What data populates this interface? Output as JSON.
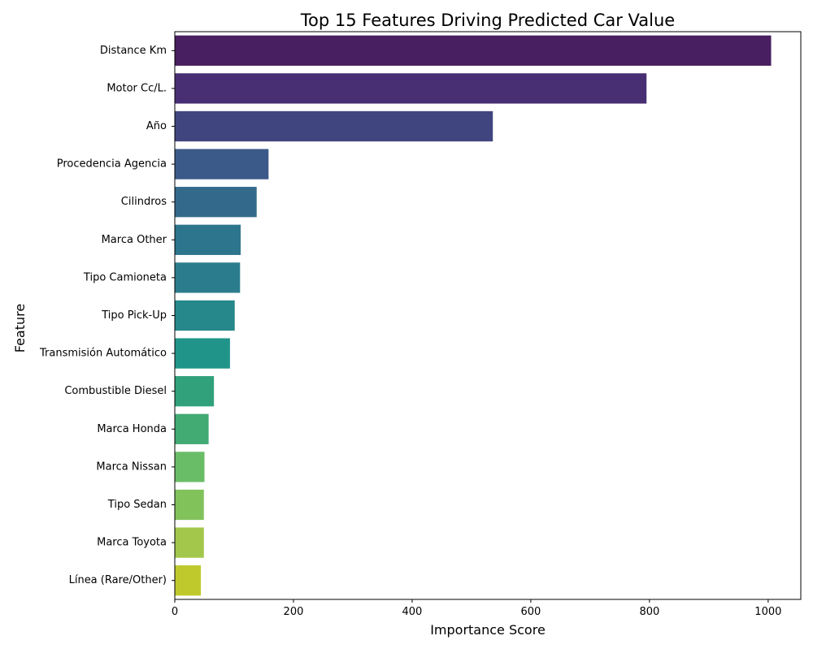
{
  "chart_data": {
    "type": "bar",
    "orientation": "horizontal",
    "title": "Top 15 Features Driving Predicted Car Value",
    "xlabel": "Importance Score",
    "ylabel": "Feature",
    "xlim": [
      0,
      1055
    ],
    "xticks": [
      0,
      200,
      400,
      600,
      800,
      1000
    ],
    "grid": false,
    "legend": "none",
    "palette": "viridis",
    "categories": [
      "Distance Km",
      "Motor Cc/L.",
      "Año",
      "Procedencia Agencia",
      "Cilindros",
      "Marca Other",
      "Tipo Camioneta",
      "Tipo Pick-Up",
      "Transmisión Automático",
      "Combustible Diesel",
      "Marca Honda",
      "Marca Nissan",
      "Tipo Sedan",
      "Marca Toyota",
      "Línea (Rare/Other)"
    ],
    "values": [
      1005,
      795,
      536,
      158,
      138,
      111,
      110,
      101,
      93,
      66,
      57,
      50,
      49,
      49,
      44
    ],
    "colors": [
      "#481f60",
      "#482f73",
      "#41457f",
      "#3b5a89",
      "#336a8c",
      "#2d748d",
      "#2b7d8d",
      "#26888a",
      "#209489",
      "#30a17b",
      "#42aa73",
      "#6abd67",
      "#81c25b",
      "#a2c74b",
      "#c0c92b"
    ]
  }
}
